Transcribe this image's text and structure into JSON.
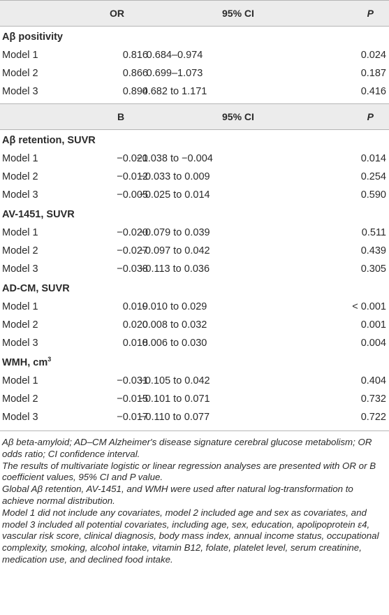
{
  "header1": {
    "col_label": "",
    "col_value": "OR",
    "col_ci": "95% CI",
    "col_p": "P"
  },
  "group1": [
    {
      "title": "Aβ positivity",
      "rows": [
        {
          "label": "Model 1",
          "value": "0.816",
          "ci": "0.684–0.974",
          "p": "0.024"
        },
        {
          "label": "Model 2",
          "value": "0.866",
          "ci": "0.699–1.073",
          "p": "0.187"
        },
        {
          "label": "Model 3",
          "value": "0.894",
          "ci": "0.682 to 1.171",
          "p": "0.416"
        }
      ]
    }
  ],
  "header2": {
    "col_label": "",
    "col_value": "B",
    "col_ci": "95% CI",
    "col_p": "P"
  },
  "group2": [
    {
      "title": "Aβ retention, SUVR",
      "rows": [
        {
          "label": "Model 1",
          "value": "−0.021",
          "ci": "−0.038 to −0.004",
          "p": "0.014"
        },
        {
          "label": "Model 2",
          "value": "−0.012",
          "ci": "−0.033 to 0.009",
          "p": "0.254"
        },
        {
          "label": "Model 3",
          "value": "−0.005",
          "ci": "−0.025 to 0.014",
          "p": "0.590"
        }
      ]
    },
    {
      "title": "AV-1451, SUVR",
      "rows": [
        {
          "label": "Model 1",
          "value": "−0.020",
          "ci": "−0.079 to 0.039",
          "p": "0.511"
        },
        {
          "label": "Model 2",
          "value": "−0.027",
          "ci": "−0.097 to 0.042",
          "p": "0.439"
        },
        {
          "label": "Model 3",
          "value": "−0.038",
          "ci": "−0.113 to 0.036",
          "p": "0.305"
        }
      ]
    },
    {
      "title": "AD-CM, SUVR",
      "rows": [
        {
          "label": "Model 1",
          "value": "0.019",
          "ci": "0.010 to 0.029",
          "p": "< 0.001"
        },
        {
          "label": "Model 2",
          "value": "0.020",
          "ci": "0.008 to 0.032",
          "p": "0.001"
        },
        {
          "label": "Model 3",
          "value": "0.018",
          "ci": "0.006 to 0.030",
          "p": "0.004"
        }
      ]
    },
    {
      "title": "WMH, cm",
      "title_sup": "3",
      "rows": [
        {
          "label": "Model 1",
          "value": "−0.031",
          "ci": "−0.105 to 0.042",
          "p": "0.404"
        },
        {
          "label": "Model 2",
          "value": "−0.015",
          "ci": "−0.101 to 0.071",
          "p": "0.732"
        },
        {
          "label": "Model 3",
          "value": "−0.017",
          "ci": "−0.110 to 0.077",
          "p": "0.722"
        }
      ]
    }
  ],
  "notes": [
    "Aβ beta-amyloid; AD–CM Alzheimer's disease signature cerebral glucose metabolism; OR odds ratio; CI confidence interval.",
    "The results of multivariate logistic or linear regression analyses are presented with OR or B coefficient values, 95% CI and P value.",
    "Global Aβ retention, AV-1451, and WMH were used after natural log-transformation to achieve normal distribution.",
    "Model 1 did not include any covariates, model 2 included age and sex as covariates, and model 3 included all potential covariates, including age, sex, education, apolipoprotein ε4, vascular risk score, clinical diagnosis, body mass index, annual income status, occupational complexity, smoking, alcohol intake, vitamin B12, folate, platelet level, serum creatinine, medication use, and declined food intake."
  ]
}
